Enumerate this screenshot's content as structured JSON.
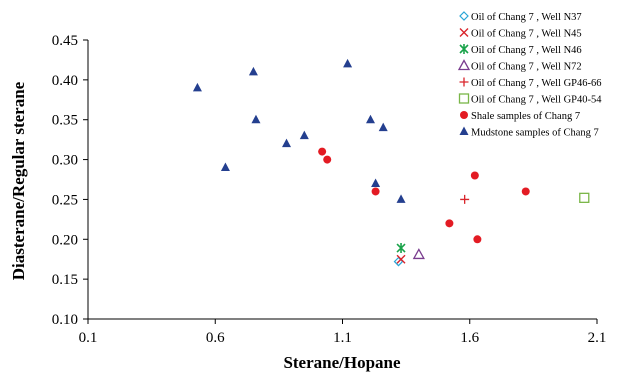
{
  "chart_data": {
    "type": "scatter",
    "xlabel": "Sterane/Hopane",
    "ylabel": "Diasterane/Regular sterane",
    "xlim": [
      0.1,
      2.1
    ],
    "ylim": [
      0.1,
      0.45
    ],
    "x_ticks": [
      "0.1",
      "0.6",
      "1.1",
      "1.6",
      "2.1"
    ],
    "y_ticks": [
      "0.10",
      "0.15",
      "0.20",
      "0.25",
      "0.30",
      "0.35",
      "0.40",
      "0.45"
    ],
    "grid": false,
    "legend_position": "top-right",
    "series": [
      {
        "name": "Oil of Chang 7 , Well N37",
        "marker": "diamond",
        "color": "#2aa5d6",
        "points": [
          [
            1.32,
            0.172
          ]
        ]
      },
      {
        "name": "Oil of Chang 7 , Well N45",
        "marker": "x",
        "color": "#d9242b",
        "points": [
          [
            1.33,
            0.175
          ]
        ]
      },
      {
        "name": "Oil of Chang 7 , Well N46",
        "marker": "asterisk",
        "color": "#1aa34a",
        "points": [
          [
            1.33,
            0.189
          ]
        ]
      },
      {
        "name": "Oil of Chang 7 , Well N72",
        "marker": "triangle-open",
        "color": "#7a3d8f",
        "points": [
          [
            1.4,
            0.181
          ]
        ]
      },
      {
        "name": "Oil of Chang 7 , Well GP46-66",
        "marker": "plus",
        "color": "#d9242b",
        "points": [
          [
            1.58,
            0.25
          ]
        ]
      },
      {
        "name": "Oil of Chang 7 , Well GP40-54",
        "marker": "square-open",
        "color": "#7ab648",
        "points": [
          [
            2.05,
            0.252
          ]
        ]
      },
      {
        "name": "Shale samples of Chang 7",
        "marker": "circle",
        "color": "#e31b23",
        "points": [
          [
            1.02,
            0.31
          ],
          [
            1.04,
            0.3
          ],
          [
            1.23,
            0.26
          ],
          [
            1.52,
            0.22
          ],
          [
            1.62,
            0.28
          ],
          [
            1.63,
            0.2
          ],
          [
            1.82,
            0.26
          ]
        ]
      },
      {
        "name": "Mudstone samples of Chang 7",
        "marker": "triangle",
        "color": "#243f8f",
        "points": [
          [
            0.53,
            0.39
          ],
          [
            0.64,
            0.29
          ],
          [
            0.75,
            0.41
          ],
          [
            0.76,
            0.35
          ],
          [
            0.88,
            0.32
          ],
          [
            0.95,
            0.33
          ],
          [
            1.12,
            0.42
          ],
          [
            1.21,
            0.35
          ],
          [
            1.23,
            0.27
          ],
          [
            1.26,
            0.34
          ],
          [
            1.33,
            0.25
          ]
        ]
      }
    ]
  }
}
